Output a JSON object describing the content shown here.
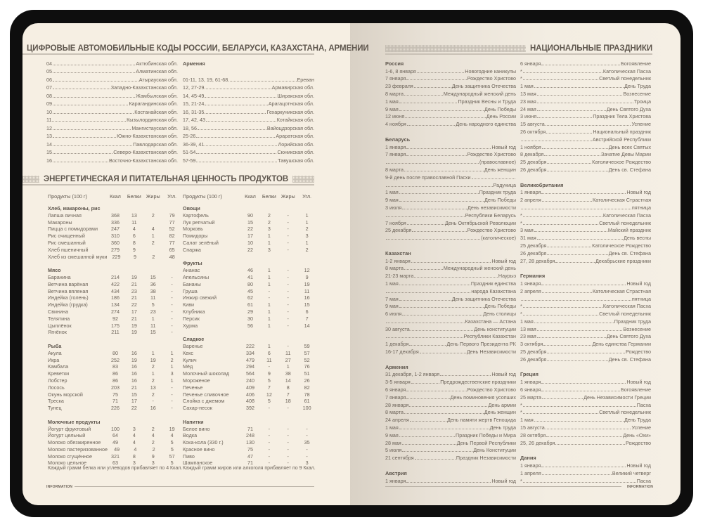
{
  "codes": {
    "title": "ЦИФРОВЫЕ АВТОМОБИЛЬНЫЕ КОДЫ РОССИИ, БЕЛАРУСИ, КАЗАХСТАНА, АРМЕНИИ",
    "left": [
      [
        "04",
        "Актюбинская обл."
      ],
      [
        "05",
        "Алматинская обл."
      ],
      [
        "06",
        "Атырауская обл."
      ],
      [
        "07",
        "Западно-Казахстанская обл."
      ],
      [
        "08",
        "Жамбылская обл."
      ],
      [
        "09",
        "Карагандинская обл."
      ],
      [
        "10",
        "Костанайская обл."
      ],
      [
        "11",
        "Кызылординская обл."
      ],
      [
        "12",
        "Мангистауская обл."
      ],
      [
        "13",
        "Южно-Казахстанская обл."
      ],
      [
        "14",
        "Павлодарская обл."
      ],
      [
        "15",
        "Северо-Казахстанская обл."
      ],
      [
        "16",
        "Восточно-Казахстанская обл."
      ]
    ],
    "armenia_title": "Армения",
    "armenia": [
      [
        "01-11, 13, 19, 61-68",
        "Ереван"
      ],
      [
        "12, 27-29",
        "Армавирская обл."
      ],
      [
        "14, 45-49",
        "Ширакская обл."
      ],
      [
        "15, 21-24",
        "Арагацотнская обл."
      ],
      [
        "16, 31-35",
        "Гехаркуникская обл."
      ],
      [
        "17, 42, 43",
        "Котайкская обл."
      ],
      [
        "18, 56",
        "Вайоцдзорская обл."
      ],
      [
        "25-26",
        "Араратская обл."
      ],
      [
        "36-39, 41",
        "Лорийская обл."
      ],
      [
        "51-54",
        "Сюникская обл."
      ],
      [
        "57-59",
        "Тавушская обл."
      ]
    ]
  },
  "nutrition": {
    "title": "ЭНЕРГЕТИЧЕСКАЯ И ПИТАТЕЛЬНАЯ ЦЕННОСТЬ ПРОДУКТОВ",
    "headers": [
      "Продукты (100 г)",
      "Ккал",
      "Белки",
      "Жиры",
      "Угл."
    ],
    "left": [
      {
        "category": "Хлеб, макароны, рис",
        "items": [
          [
            "Лапша яичная",
            "368",
            "13",
            "2",
            "79"
          ],
          [
            "Макароны",
            "336",
            "11",
            "",
            "77"
          ],
          [
            "Пицца с помидорами",
            "247",
            "4",
            "4",
            "52"
          ],
          [
            "Рис очищенный",
            "310",
            "6",
            "1",
            "82"
          ],
          [
            "Рис смешанный",
            "360",
            "8",
            "2",
            "77"
          ],
          [
            "Хлеб пшеничный",
            "279",
            "9",
            "",
            "65"
          ],
          [
            "Хлеб из смешанной муки",
            "229",
            "9",
            "2",
            "48"
          ]
        ]
      },
      {
        "category": "Мясо",
        "items": [
          [
            "Баранина",
            "214",
            "19",
            "15",
            "-"
          ],
          [
            "Ветчина варёная",
            "422",
            "21",
            "36",
            "-"
          ],
          [
            "Ветчина вяленая",
            "434",
            "23",
            "38",
            "-"
          ],
          [
            "Индейка (голень)",
            "186",
            "21",
            "11",
            "-"
          ],
          [
            "Индейка (грудка)",
            "134",
            "22",
            "5",
            "-"
          ],
          [
            "Свинина",
            "274",
            "17",
            "23",
            "-"
          ],
          [
            "Телятина",
            "92",
            "21",
            "1",
            "-"
          ],
          [
            "Цыплёнок",
            "175",
            "19",
            "11",
            "-"
          ],
          [
            "Ягнёнок",
            "211",
            "19",
            "15",
            "-"
          ]
        ]
      },
      {
        "category": "Рыба",
        "items": [
          [
            "Акула",
            "80",
            "16",
            "1",
            "1"
          ],
          [
            "Икра",
            "252",
            "19",
            "19",
            "2"
          ],
          [
            "Камбала",
            "83",
            "16",
            "2",
            "1"
          ],
          [
            "Креветки",
            "86",
            "16",
            "1",
            "3"
          ],
          [
            "Лобстер",
            "86",
            "16",
            "2",
            "1"
          ],
          [
            "Лосось",
            "203",
            "21",
            "13",
            "-"
          ],
          [
            "Окунь морской",
            "75",
            "15",
            "2",
            "-"
          ],
          [
            "Треска",
            "71",
            "17",
            "-",
            "-"
          ],
          [
            "Тунец",
            "226",
            "22",
            "16",
            "-"
          ]
        ]
      },
      {
        "category": "Молочные продукты",
        "items": [
          [
            "Йогурт фруктовый",
            "100",
            "3",
            "2",
            "19"
          ],
          [
            "Йогурт цельный",
            "64",
            "4",
            "4",
            "4"
          ],
          [
            "Молоко обезжиренное",
            "49",
            "4",
            "2",
            "5"
          ],
          [
            "Молоко пастеризованное",
            "49",
            "4",
            "2",
            "5"
          ],
          [
            "Молоко сгущённое",
            "321",
            "8",
            "9",
            "57"
          ],
          [
            "Молоко цельное",
            "63",
            "3",
            "3",
            "5"
          ]
        ]
      }
    ],
    "right": [
      {
        "category": "Овощи",
        "items": [
          [
            "Картофель",
            "90",
            "2",
            "-",
            "1"
          ],
          [
            "Лук репчатый",
            "15",
            "2",
            "-",
            "1"
          ],
          [
            "Морковь",
            "22",
            "3",
            "-",
            "2"
          ],
          [
            "Помидоры",
            "17",
            "1",
            "-",
            "3"
          ],
          [
            "Салат зелёный",
            "10",
            "1",
            "-",
            "1"
          ],
          [
            "Спаржа",
            "22",
            "3",
            "-",
            "2"
          ]
        ]
      },
      {
        "category": "Фрукты",
        "items": [
          [
            "Ананас",
            "46",
            "1",
            "-",
            "12"
          ],
          [
            "Апельсины",
            "41",
            "1",
            "-",
            "9"
          ],
          [
            "Бананы",
            "80",
            "1",
            "-",
            "19"
          ],
          [
            "Груша",
            "45",
            "-",
            "-",
            "11"
          ],
          [
            "Инжир свежий",
            "62",
            "-",
            "-",
            "16"
          ],
          [
            "Киви",
            "61",
            "1",
            "-",
            "15"
          ],
          [
            "Клубника",
            "29",
            "1",
            "-",
            "6"
          ],
          [
            "Персик",
            "30",
            "1",
            "-",
            "7"
          ],
          [
            "Хурма",
            "56",
            "1",
            "-",
            "14"
          ]
        ]
      },
      {
        "category": "Сладкое",
        "items": [
          [
            "Варенье",
            "222",
            "1",
            "-",
            "59"
          ],
          [
            "Кекс",
            "334",
            "6",
            "11",
            "57"
          ],
          [
            "Кулич",
            "479",
            "11",
            "27",
            "52"
          ],
          [
            "Мёд",
            "294",
            "-",
            "1",
            "76"
          ],
          [
            "Молочный шоколад",
            "564",
            "9",
            "38",
            "51"
          ],
          [
            "Мороженое",
            "240",
            "5",
            "14",
            "26"
          ],
          [
            "Печенье",
            "409",
            "7",
            "8",
            "82"
          ],
          [
            "Печенье сливочное",
            "406",
            "12",
            "7",
            "78"
          ],
          [
            "Слойка с джемом",
            "408",
            "5",
            "18",
            "61"
          ],
          [
            "Сахар-песок",
            "392",
            "-",
            "-",
            "100"
          ]
        ]
      },
      {
        "category": "Напитки",
        "items": [
          [
            "Белое вино",
            "71",
            "-",
            "-",
            "-"
          ],
          [
            "Водка",
            "248",
            "-",
            "-",
            "-"
          ],
          [
            "Кока-кола (330 г.)",
            "130",
            "-",
            "-",
            "35"
          ],
          [
            "Красное вино",
            "75",
            "-",
            "-",
            "-"
          ],
          [
            "Пиво",
            "47",
            "-",
            "-",
            "-"
          ],
          [
            "Шампанское",
            "71",
            "-",
            "-",
            "3"
          ]
        ]
      }
    ],
    "note_left": "Каждый грамм белка или углеводов прибавляет по 4 Ккал.",
    "note_right": "Каждый грамм жиров или алкоголя прибавляет по 9 Ккал."
  },
  "holidays": {
    "title": "НАЦИОНАЛЬНЫЕ ПРАЗДНИКИ",
    "col1": [
      {
        "country": "Россия",
        "rows": [
          [
            "1-6, 8 января",
            "Новогодние каникулы"
          ],
          [
            "7 января",
            "Рождество Христово"
          ],
          [
            "23 февраля",
            "День защитника Отечества"
          ],
          [
            "8 марта",
            "Международный женский день"
          ],
          [
            "1 мая",
            "Праздник Весны и Труда"
          ],
          [
            "9 мая",
            "День Победы"
          ],
          [
            "12 июня",
            "День России"
          ],
          [
            "4 ноября",
            "День народного единства"
          ]
        ]
      },
      {
        "country": "Беларусь",
        "rows": [
          [
            "1 января",
            "Новый год"
          ],
          [
            "7 января",
            "Рождество Христово"
          ],
          [
            "",
            "(православное)"
          ],
          [
            "8 марта",
            "День женщин"
          ],
          [
            "9-й день после православной Пасхи",
            ""
          ],
          [
            "",
            "Радуница"
          ],
          [
            "1 мая",
            "Праздник труда"
          ],
          [
            "9 мая",
            "День Победы"
          ],
          [
            "3 июля",
            "День независимости"
          ],
          [
            "",
            "Республики Беларусь"
          ],
          [
            "7 ноября",
            "День Октябрьской Революции"
          ],
          [
            "25 декабря",
            "Рождество Христово"
          ],
          [
            "",
            "(католическое)"
          ]
        ]
      },
      {
        "country": "Казахстан",
        "rows": [
          [
            "1-2 января",
            "Новый год"
          ],
          [
            "8 марта",
            "Международный женский день"
          ],
          [
            "21-23 марта",
            "Наурыз"
          ],
          [
            "1 мая",
            "Праздник единства"
          ],
          [
            "",
            "народа Казахстана"
          ],
          [
            "7 мая",
            "День защитника Отечества"
          ],
          [
            "9 мая",
            "День Победы"
          ],
          [
            "6 июля",
            "День столицы"
          ],
          [
            "",
            "Казахстана — Астана"
          ],
          [
            "30 августа",
            "День конституции"
          ],
          [
            "",
            "Республики Казахстан"
          ],
          [
            "1 декабря",
            "День Первого Президента РК"
          ],
          [
            "16-17 декабря",
            "День Независимости"
          ]
        ]
      },
      {
        "country": "Армения",
        "rows": [
          [
            "31 декабря, 1-2 января",
            "Новый год"
          ],
          [
            "3-5 января",
            "Предрождественские праздники"
          ],
          [
            "6 января",
            "Рождество Христово"
          ],
          [
            "7 января",
            "День поминовения усопших"
          ],
          [
            "28 января",
            "День армии"
          ],
          [
            "8 марта",
            "День женщин"
          ],
          [
            "24 апреля",
            "День памяти жертв Геноцида"
          ],
          [
            "1 мая",
            "День труда"
          ],
          [
            "9 мая",
            "Праздник Победы и Мира"
          ],
          [
            "28 мая",
            "День Первой Республики"
          ],
          [
            "5 июля",
            "День Конституции"
          ],
          [
            "21 сентября",
            "Праздник Независимости"
          ]
        ]
      },
      {
        "country": "Австрия",
        "rows": [
          [
            "1 января",
            "Новый год"
          ]
        ]
      }
    ],
    "col2": [
      {
        "country": "",
        "rows": [
          [
            "6 января",
            "Богоявление"
          ],
          [
            "*",
            "Католическая Пасха"
          ],
          [
            "*",
            "Светлый понедельник"
          ],
          [
            "1 мая",
            "День Труда"
          ],
          [
            "13 мая",
            "Вознесение"
          ],
          [
            "23 мая",
            "Троица"
          ],
          [
            "24 мая",
            "День Святого Духа"
          ],
          [
            "3 июня",
            "Праздник Тела Христова"
          ],
          [
            "15 августа",
            "Успение"
          ],
          [
            "26 октября",
            "Национальный праздник"
          ],
          [
            "",
            "Австрийской Республики"
          ],
          [
            "1 ноября",
            "День всех Святых"
          ],
          [
            "8 декабря",
            "Зачатие Девы Марии"
          ],
          [
            "25 декабря",
            "Католическое Рождество"
          ],
          [
            "26 декабря",
            "День св. Стефана"
          ]
        ]
      },
      {
        "country": "Великобритания",
        "rows": [
          [
            "1 января",
            "Новый год"
          ],
          [
            "2 апреля",
            "Католическая Страстная"
          ],
          [
            "",
            "пятница"
          ],
          [
            "*",
            "Католическая Пасха"
          ],
          [
            "*",
            "Светлый понедельник"
          ],
          [
            "3 мая",
            "Майский праздник"
          ],
          [
            "31 мая",
            "День весны"
          ],
          [
            "25 декабря",
            "Католическое Рождество"
          ],
          [
            "26 декабря",
            "День св. Стефана"
          ],
          [
            "27, 28 декабря",
            "Декабрьские праздники"
          ]
        ]
      },
      {
        "country": "Германия",
        "rows": [
          [
            "1 января",
            "Новый год"
          ],
          [
            "2 апреля",
            "Католическая Страстная"
          ],
          [
            "",
            "пятница"
          ],
          [
            "*",
            "Католическая Пасха"
          ],
          [
            "*",
            "Светлый понедельник"
          ],
          [
            "1 мая",
            "Праздник труда"
          ],
          [
            "13 мая",
            "Вознесение"
          ],
          [
            "23 мая",
            "День Святого Духа"
          ],
          [
            "3 октября",
            "День единства Германии"
          ],
          [
            "25 декабря",
            "Рождество"
          ],
          [
            "26 декабря",
            "День св. Стефана"
          ]
        ]
      },
      {
        "country": "Греция",
        "rows": [
          [
            "1 января",
            "Новый год"
          ],
          [
            "6 января",
            "Богоявление"
          ],
          [
            "25 марта",
            "День Независимости Греции"
          ],
          [
            "*",
            "Пасха"
          ],
          [
            "*",
            "Светлый понедельник"
          ],
          [
            "1 мая",
            "День Труда"
          ],
          [
            "15 августа",
            "Успение"
          ],
          [
            "28 октября",
            "День «Охи»"
          ],
          [
            "25, 26 декабря",
            "Рождество"
          ]
        ]
      },
      {
        "country": "Дания",
        "rows": [
          [
            "1 января",
            "Новый год"
          ],
          [
            "1 апреля",
            "Великий четверг"
          ],
          [
            "*",
            "Пасха"
          ]
        ]
      }
    ]
  },
  "footer": {
    "left": "INFORMATION",
    "right": "INFORMATION"
  }
}
